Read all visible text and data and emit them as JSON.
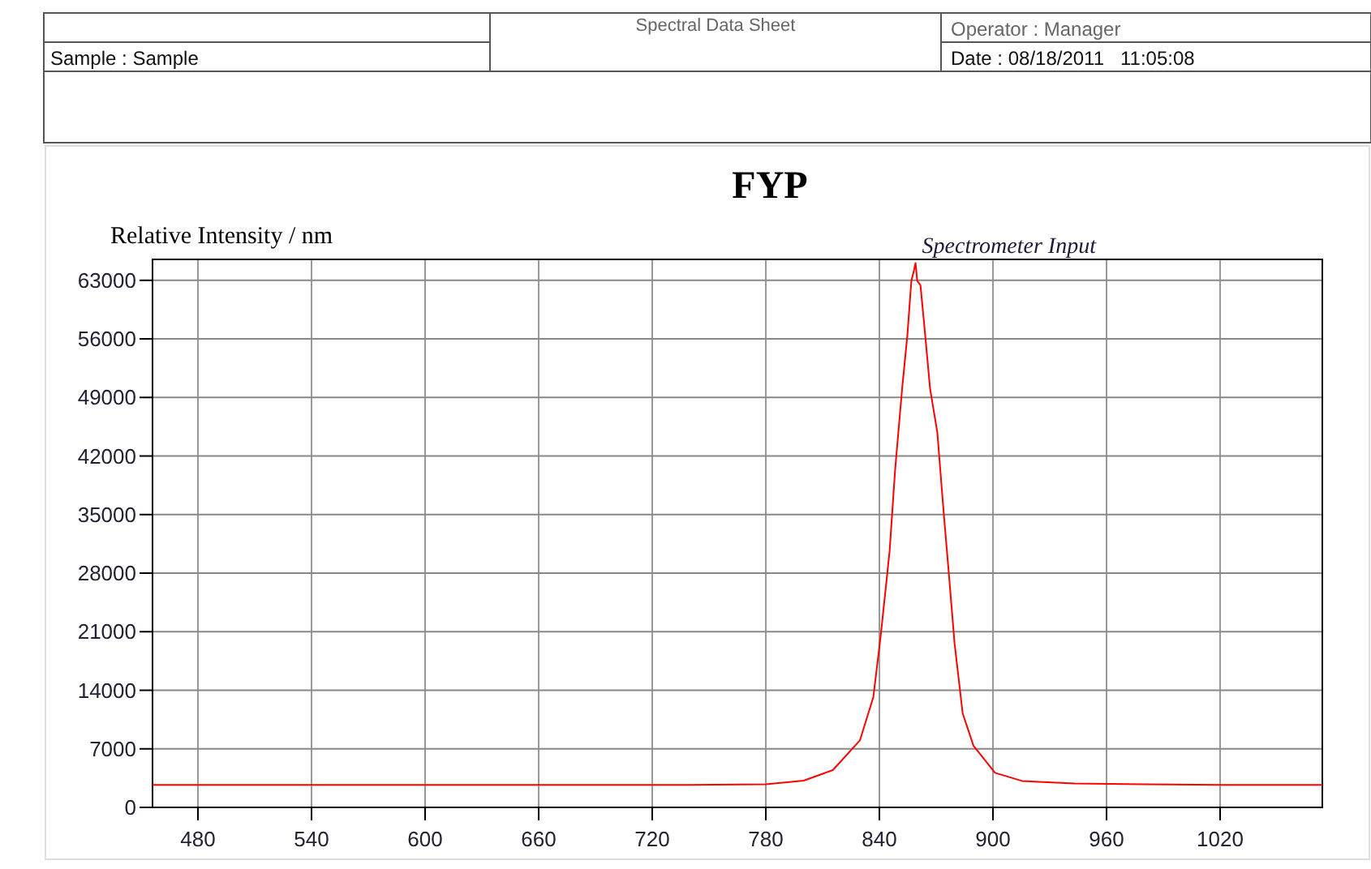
{
  "chart_data": {
    "type": "line",
    "title": "FYP",
    "ylabel": "Relative Intensity / nm",
    "annotations": [
      "Spectral Data Sheet",
      "Sample : Sample",
      "Operator : Manager",
      "Date : 08/18/2011   11:05:08"
    ],
    "x": [
      456,
      500,
      560,
      620,
      680,
      740,
      780,
      800,
      815.4,
      829.7,
      836.8,
      840.6,
      845.4,
      848.3,
      852,
      854.8,
      856.9,
      858.3,
      859.1,
      860,
      861.7,
      863.4,
      866.8,
      870.6,
      874,
      876.9,
      879.7,
      884,
      889.7,
      901.1,
      915.4,
      943,
      980,
      1020,
      1074
    ],
    "series": [
      {
        "name": "Spectrometer Input",
        "color": "#ff0000",
        "values": [
          2700,
          2700,
          2700,
          2700,
          2700,
          2700,
          2750,
          3200,
          4460,
          8000,
          13180,
          20300,
          30630,
          40320,
          50010,
          56470,
          62940,
          64220,
          65070,
          62940,
          62420,
          58410,
          50010,
          44840,
          35150,
          27390,
          19640,
          11240,
          7370,
          4130,
          3160,
          2850,
          2750,
          2700,
          2700
        ]
      }
    ],
    "xlim": [
      456,
      1074
    ],
    "ylim": [
      0,
      65500
    ],
    "xticks": [
      480,
      540,
      600,
      660,
      720,
      780,
      840,
      900,
      960,
      1020
    ],
    "yticks": [
      0,
      7000,
      14000,
      21000,
      28000,
      35000,
      42000,
      49000,
      56000,
      63000
    ],
    "grid": true,
    "marker": "none",
    "line_style": "solid"
  }
}
